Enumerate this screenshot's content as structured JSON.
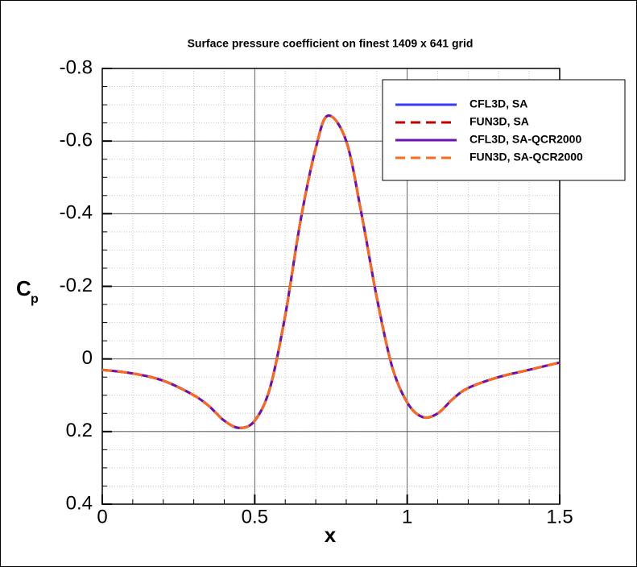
{
  "chart_data": {
    "type": "line",
    "title": "Surface pressure coefficient on finest 1409 x 641 grid",
    "xlabel": "x",
    "ylabel": "C",
    "ylabel_sub": "p",
    "x": [
      0,
      0.1,
      0.2,
      0.3,
      0.35,
      0.4,
      0.45,
      0.5,
      0.55,
      0.6,
      0.65,
      0.7,
      0.74,
      0.8,
      0.85,
      0.9,
      0.95,
      1.0,
      1.05,
      1.1,
      1.15,
      1.2,
      1.3,
      1.4,
      1.5
    ],
    "series": [
      {
        "name": "CFL3D, SA",
        "color": "#3a3aff",
        "dashed": false,
        "values": [
          0.03,
          0.04,
          0.06,
          0.1,
          0.13,
          0.17,
          0.19,
          0.17,
          0.08,
          -0.12,
          -0.38,
          -0.58,
          -0.67,
          -0.6,
          -0.4,
          -0.17,
          0.02,
          0.12,
          0.16,
          0.15,
          0.11,
          0.08,
          0.05,
          0.03,
          0.01
        ]
      },
      {
        "name": "FUN3D, SA",
        "color": "#c00000",
        "dashed": true,
        "values": [
          0.03,
          0.04,
          0.06,
          0.1,
          0.13,
          0.17,
          0.19,
          0.17,
          0.08,
          -0.12,
          -0.38,
          -0.58,
          -0.67,
          -0.6,
          -0.4,
          -0.17,
          0.02,
          0.12,
          0.16,
          0.15,
          0.11,
          0.08,
          0.05,
          0.03,
          0.01
        ]
      },
      {
        "name": "CFL3D, SA-QCR2000",
        "color": "#6a12b0",
        "dashed": false,
        "values": [
          0.03,
          0.04,
          0.06,
          0.1,
          0.13,
          0.17,
          0.19,
          0.17,
          0.08,
          -0.12,
          -0.38,
          -0.58,
          -0.67,
          -0.6,
          -0.4,
          -0.17,
          0.02,
          0.12,
          0.16,
          0.15,
          0.11,
          0.08,
          0.05,
          0.03,
          0.01
        ]
      },
      {
        "name": "FUN3D, SA-QCR2000",
        "color": "#ff6a1a",
        "dashed": true,
        "values": [
          0.03,
          0.04,
          0.06,
          0.1,
          0.13,
          0.17,
          0.19,
          0.17,
          0.08,
          -0.12,
          -0.38,
          -0.58,
          -0.67,
          -0.6,
          -0.4,
          -0.17,
          0.02,
          0.12,
          0.16,
          0.15,
          0.11,
          0.08,
          0.05,
          0.03,
          0.01
        ]
      }
    ],
    "xlim": [
      0,
      1.5
    ],
    "xticks": [
      0,
      0.5,
      1,
      1.5
    ],
    "ylim": [
      -0.8,
      0.4
    ],
    "yticks": [
      -0.8,
      -0.6,
      -0.4,
      -0.2,
      0,
      0.2,
      0.4
    ],
    "y_inverted": true,
    "grid": true,
    "minor_step": {
      "x": 0.1,
      "y": 0.05
    },
    "legend": "upper-right"
  }
}
